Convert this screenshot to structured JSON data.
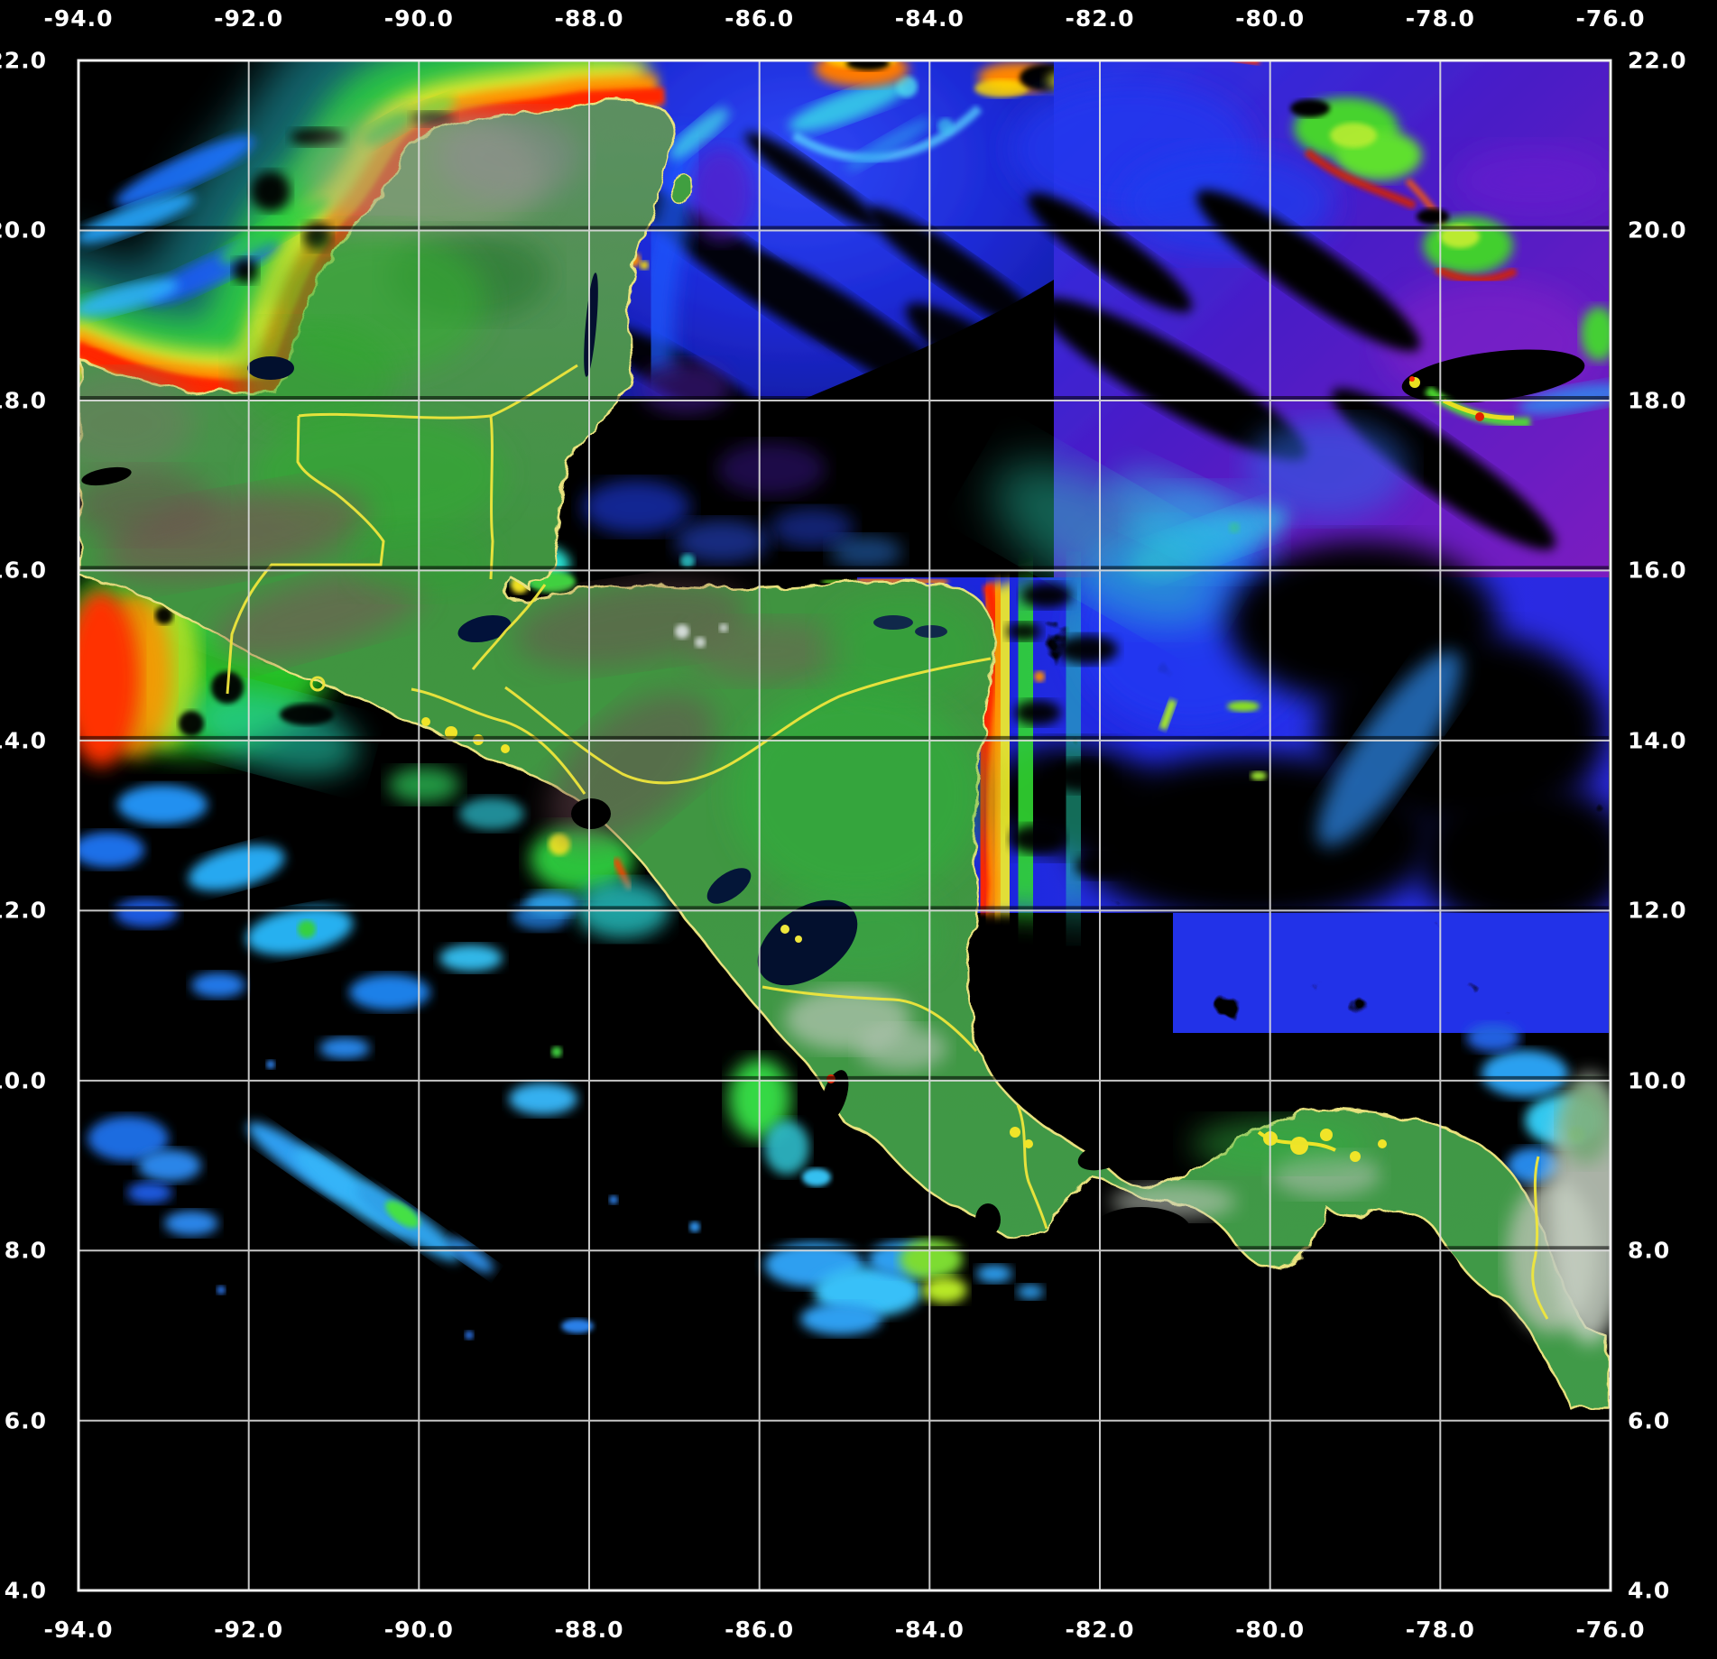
{
  "figure": {
    "kind": "satellite-ocean-color-map",
    "x_axis": {
      "ticks": [
        "-94.0",
        "-92.0",
        "-90.0",
        "-88.0",
        "-86.0",
        "-84.0",
        "-82.0",
        "-80.0",
        "-78.0",
        "-76.0"
      ]
    },
    "y_axis": {
      "ticks": [
        "22.0",
        "20.0",
        "18.0",
        "16.0",
        "14.0",
        "12.0",
        "10.0",
        "8.0",
        "6.0",
        "4.0"
      ]
    },
    "colors": {
      "background": "#000000",
      "grid": "#dcdcdc",
      "plot_border": "#f0f0f0",
      "tick_text": "#ffffff",
      "political_borders": "#efe63c",
      "coastline": "#e9e27e",
      "land": "#3f8f3f",
      "chlorophyll_very_high": "#ff2800",
      "chlorophyll_high": "#ff9000",
      "chlorophyll_medium": "#f2ee2a",
      "chlorophyll_moderate": "#2fd13f",
      "chlorophyll_low": "#25c8d8",
      "chlorophyll_very_low": "#1d2ad0",
      "deep_water": "#5a1cc8",
      "cloud_no_data": "#000000"
    }
  }
}
